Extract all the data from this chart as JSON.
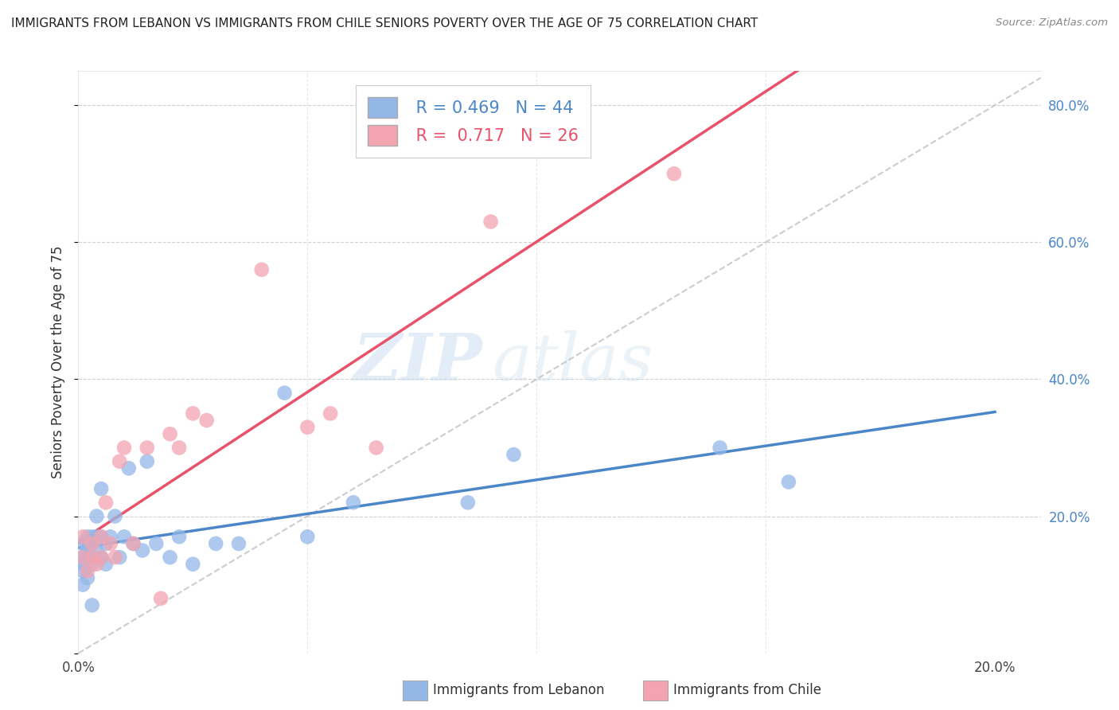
{
  "title": "IMMIGRANTS FROM LEBANON VS IMMIGRANTS FROM CHILE SENIORS POVERTY OVER THE AGE OF 75 CORRELATION CHART",
  "source": "Source: ZipAtlas.com",
  "ylabel": "Seniors Poverty Over the Age of 75",
  "ylim": [
    0.0,
    0.85
  ],
  "xlim": [
    0.0,
    0.21
  ],
  "yticks": [
    0.0,
    0.2,
    0.4,
    0.6,
    0.8
  ],
  "ytick_labels": [
    "",
    "20.0%",
    "40.0%",
    "60.0%",
    "80.0%"
  ],
  "xticks": [
    0.0,
    0.05,
    0.1,
    0.15,
    0.2
  ],
  "xtick_labels": [
    "0.0%",
    "",
    "",
    "",
    "20.0%"
  ],
  "R_lebanon": 0.469,
  "N_lebanon": 44,
  "R_chile": 0.717,
  "N_chile": 26,
  "color_lebanon": "#93b8e8",
  "color_chile": "#f4a3b0",
  "line_color_lebanon": "#4a86c8",
  "line_color_chile": "#e8526a",
  "diagonal_color": "#c0c0c0",
  "watermark_zip": "ZIP",
  "watermark_atlas": "atlas",
  "lebanon_x": [
    0.001,
    0.001,
    0.001,
    0.001,
    0.001,
    0.002,
    0.002,
    0.002,
    0.002,
    0.002,
    0.003,
    0.003,
    0.003,
    0.003,
    0.003,
    0.004,
    0.004,
    0.004,
    0.005,
    0.005,
    0.005,
    0.006,
    0.006,
    0.007,
    0.008,
    0.009,
    0.01,
    0.011,
    0.012,
    0.014,
    0.015,
    0.017,
    0.02,
    0.022,
    0.025,
    0.03,
    0.035,
    0.045,
    0.05,
    0.06,
    0.085,
    0.095,
    0.14,
    0.155
  ],
  "lebanon_y": [
    0.14,
    0.13,
    0.12,
    0.1,
    0.16,
    0.15,
    0.17,
    0.16,
    0.14,
    0.11,
    0.14,
    0.17,
    0.13,
    0.16,
    0.07,
    0.15,
    0.17,
    0.2,
    0.14,
    0.17,
    0.24,
    0.13,
    0.16,
    0.17,
    0.2,
    0.14,
    0.17,
    0.27,
    0.16,
    0.15,
    0.28,
    0.16,
    0.14,
    0.17,
    0.13,
    0.16,
    0.16,
    0.38,
    0.17,
    0.22,
    0.22,
    0.29,
    0.3,
    0.25
  ],
  "chile_x": [
    0.001,
    0.001,
    0.002,
    0.003,
    0.003,
    0.004,
    0.005,
    0.005,
    0.006,
    0.007,
    0.008,
    0.009,
    0.01,
    0.012,
    0.015,
    0.018,
    0.02,
    0.022,
    0.025,
    0.028,
    0.04,
    0.05,
    0.055,
    0.065,
    0.09,
    0.13
  ],
  "chile_y": [
    0.14,
    0.17,
    0.12,
    0.16,
    0.14,
    0.13,
    0.14,
    0.17,
    0.22,
    0.16,
    0.14,
    0.28,
    0.3,
    0.16,
    0.3,
    0.08,
    0.32,
    0.3,
    0.35,
    0.34,
    0.56,
    0.33,
    0.35,
    0.3,
    0.63,
    0.7
  ]
}
